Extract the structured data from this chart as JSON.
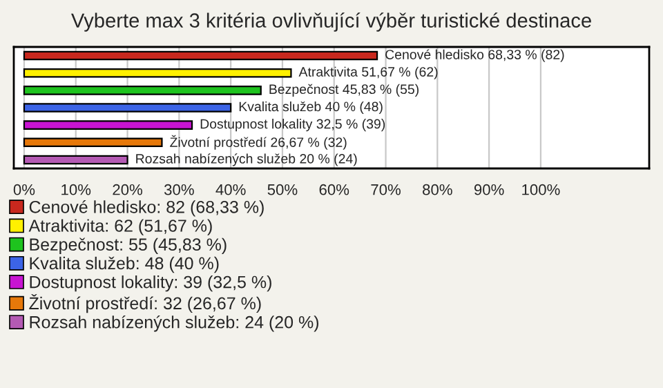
{
  "chart_data": {
    "type": "bar",
    "orientation": "horizontal",
    "title": "Vyberte max 3 kritéria ovlivňující výběr turistické destinace",
    "categories": [
      null,
      null,
      null,
      null,
      null,
      null,
      null
    ],
    "series": [
      {
        "name": "Cenové hledisko: 82 (68,33 %)",
        "color": "#c8281e",
        "values": [
          68.33,
          null,
          null,
          null,
          null,
          null,
          null
        ],
        "value_labels": [
          "Cenové hledisko 68,33 % (82)",
          null,
          null,
          null,
          null,
          null,
          null
        ]
      },
      {
        "name": "Atraktivita: 62 (51,67 %)",
        "color": "#fff000",
        "values": [
          null,
          51.67,
          null,
          null,
          null,
          null,
          null
        ],
        "value_labels": [
          null,
          "Atraktivita 51,67 % (62)",
          null,
          null,
          null,
          null,
          null
        ]
      },
      {
        "name": "Bezpečnost: 55 (45,83 %)",
        "color": "#1ec31e",
        "values": [
          null,
          null,
          45.83,
          null,
          null,
          null,
          null
        ],
        "value_labels": [
          null,
          null,
          "Bezpečnost 45,83 % (55)",
          null,
          null,
          null,
          null
        ]
      },
      {
        "name": "Kvalita služeb: 48 (40 %)",
        "color": "#3c64e6",
        "values": [
          null,
          null,
          null,
          40,
          null,
          null,
          null
        ],
        "value_labels": [
          null,
          null,
          null,
          "Kvalita služeb 40 % (48)",
          null,
          null,
          null
        ]
      },
      {
        "name": "Dostupnost lokality: 39 (32,5 %)",
        "color": "#c814d2",
        "values": [
          null,
          null,
          null,
          null,
          32.5,
          null,
          null
        ],
        "value_labels": [
          null,
          null,
          null,
          null,
          "Dostupnost lokality 32,5 % (39)",
          null,
          null
        ]
      },
      {
        "name": "Životní prostředí: 32 (26,67 %)",
        "color": "#e6780a",
        "values": [
          null,
          null,
          null,
          null,
          null,
          26.67,
          null
        ],
        "value_labels": [
          null,
          null,
          null,
          null,
          null,
          "Životní prostředí 26,67 % (32)",
          null
        ]
      },
      {
        "name": "Rozsah nabízených služeb: 24 (20 %)",
        "color": "#b45ab4",
        "values": [
          null,
          null,
          null,
          null,
          null,
          null,
          20
        ],
        "value_labels": [
          null,
          null,
          null,
          null,
          null,
          null,
          "Rozsah nabízených služeb 20 % (24)"
        ]
      }
    ],
    "xlim": [
      -2,
      121
    ],
    "xticks": [
      {
        "value": 0,
        "label": "0%"
      },
      {
        "value": 10,
        "label": "10%"
      },
      {
        "value": 20,
        "label": "20%"
      },
      {
        "value": 30,
        "label": "30%"
      },
      {
        "value": 40,
        "label": "40%"
      },
      {
        "value": 50,
        "label": "50%"
      },
      {
        "value": 60,
        "label": "60%"
      },
      {
        "value": 70,
        "label": "70%"
      },
      {
        "value": 80,
        "label": "80%"
      },
      {
        "value": 90,
        "label": "90%"
      },
      {
        "value": 100,
        "label": "100%"
      }
    ],
    "grid": "x",
    "legend": "bottom",
    "tick_labels": "x"
  }
}
